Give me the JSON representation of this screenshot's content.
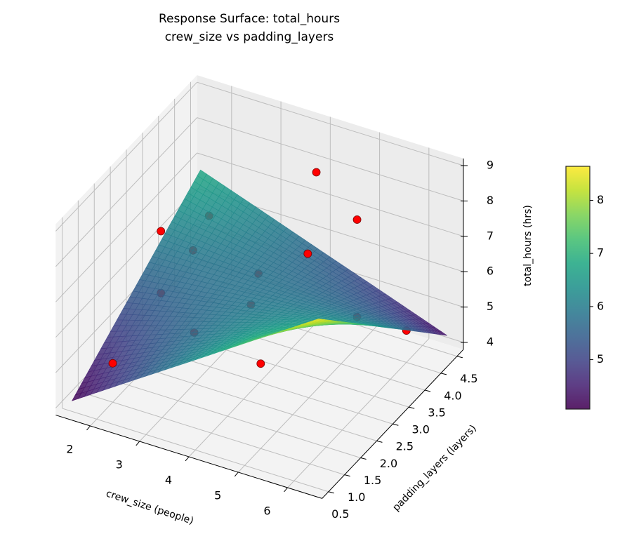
{
  "chart_data": {
    "type": "surface3d+scatter",
    "title": [
      "Response Surface: total_hours",
      "crew_size vs padding_layers"
    ],
    "xlabel": "crew_size (people)",
    "ylabel": "padding_layers (layers)",
    "zlabel": "total_hours (hrs)",
    "xlim": [
      1.3,
      6.7
    ],
    "ylim": [
      0.3,
      4.7
    ],
    "zlim": [
      3.8,
      9.2
    ],
    "xticks": [
      "2",
      "3",
      "4",
      "5",
      "6"
    ],
    "yticks": [
      "0.5",
      "1.0",
      "1.5",
      "2.0",
      "2.5",
      "3.0",
      "3.5",
      "4.0",
      "4.5"
    ],
    "zticks": [
      "4",
      "5",
      "6",
      "7",
      "8",
      "9"
    ],
    "grid": true,
    "colormap": "viridis",
    "colorbar": {
      "range": [
        4.07,
        8.64
      ],
      "ticks": [
        "5",
        "6",
        "7",
        "8"
      ],
      "placement": "right"
    },
    "surface": {
      "x": [
        1.5,
        2.75,
        4.0,
        5.25,
        6.5
      ],
      "y": [
        0.5,
        1.5,
        2.5,
        3.5,
        4.5
      ],
      "z": [
        [
          4.1,
          5.23,
          6.35,
          7.48,
          8.6
        ],
        [
          4.78,
          5.46,
          6.15,
          6.84,
          7.53
        ],
        [
          5.45,
          5.7,
          5.95,
          6.2,
          6.45
        ],
        [
          6.13,
          5.94,
          5.75,
          5.56,
          5.38
        ],
        [
          6.8,
          6.18,
          5.55,
          4.93,
          4.3
        ]
      ]
    },
    "points": [
      {
        "x": 4.5,
        "y": 3.5,
        "z": 9.0
      },
      {
        "x": 5.0,
        "y": 4.0,
        "z": 7.4
      },
      {
        "x": 2.0,
        "y": 2.5,
        "z": 7.2
      },
      {
        "x": 2.0,
        "y": 1.0,
        "z": 4.9
      },
      {
        "x": 5.0,
        "y": 1.0,
        "z": 6.2
      },
      {
        "x": 6.0,
        "y": 4.0,
        "z": 4.7
      },
      {
        "x": 2.0,
        "y": 4.0,
        "z": 6.2
      },
      {
        "x": 2.0,
        "y": 3.5,
        "z": 5.7
      },
      {
        "x": 3.0,
        "y": 4.0,
        "z": 5.0
      },
      {
        "x": 4.0,
        "y": 4.0,
        "z": 6.0
      },
      {
        "x": 2.0,
        "y": 2.5,
        "z": 5.45
      },
      {
        "x": 3.5,
        "y": 3.0,
        "z": 5.3
      },
      {
        "x": 3.0,
        "y": 2.0,
        "z": 5.25
      },
      {
        "x": 5.0,
        "y": 4.0,
        "z": 4.65
      }
    ],
    "point_color": "#ff0000",
    "colors": {
      "pane_left": "#f2f2f2",
      "pane_back": "#ececec",
      "pane_floor": "#f3f3f3",
      "grid": "#bdbdbd"
    }
  }
}
